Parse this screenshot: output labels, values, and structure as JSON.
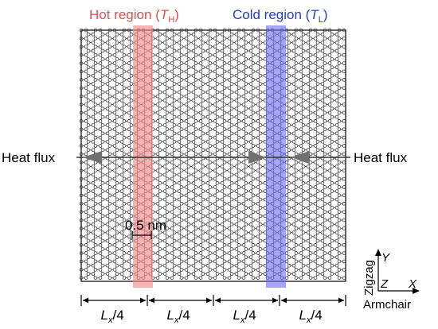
{
  "labels": {
    "hot_region": "Hot region (",
    "hot_symbol": "T",
    "hot_sub": "H",
    "cold_region": "Cold region (",
    "cold_symbol": "T",
    "cold_sub": "L",
    "close_paren": ")",
    "heat_flux_left": "Heat flux",
    "heat_flux_right": "Heat flux",
    "scale_bar": "0.5 nm",
    "segment_base": "L",
    "segment_sub": "x",
    "segment_div": "/4",
    "axis_y": "Y",
    "axis_y_dir": "Zigzag",
    "axis_z": "Z",
    "axis_x": "X",
    "axis_x_dir": "Armchair"
  },
  "colors": {
    "hot_band": "#f28b8b",
    "cold_band": "#6a6af0",
    "hot_text": "#d9534f",
    "cold_text": "#1f3fd0",
    "lattice_line": "#505050",
    "atom_fill": "#ffffff"
  }
}
